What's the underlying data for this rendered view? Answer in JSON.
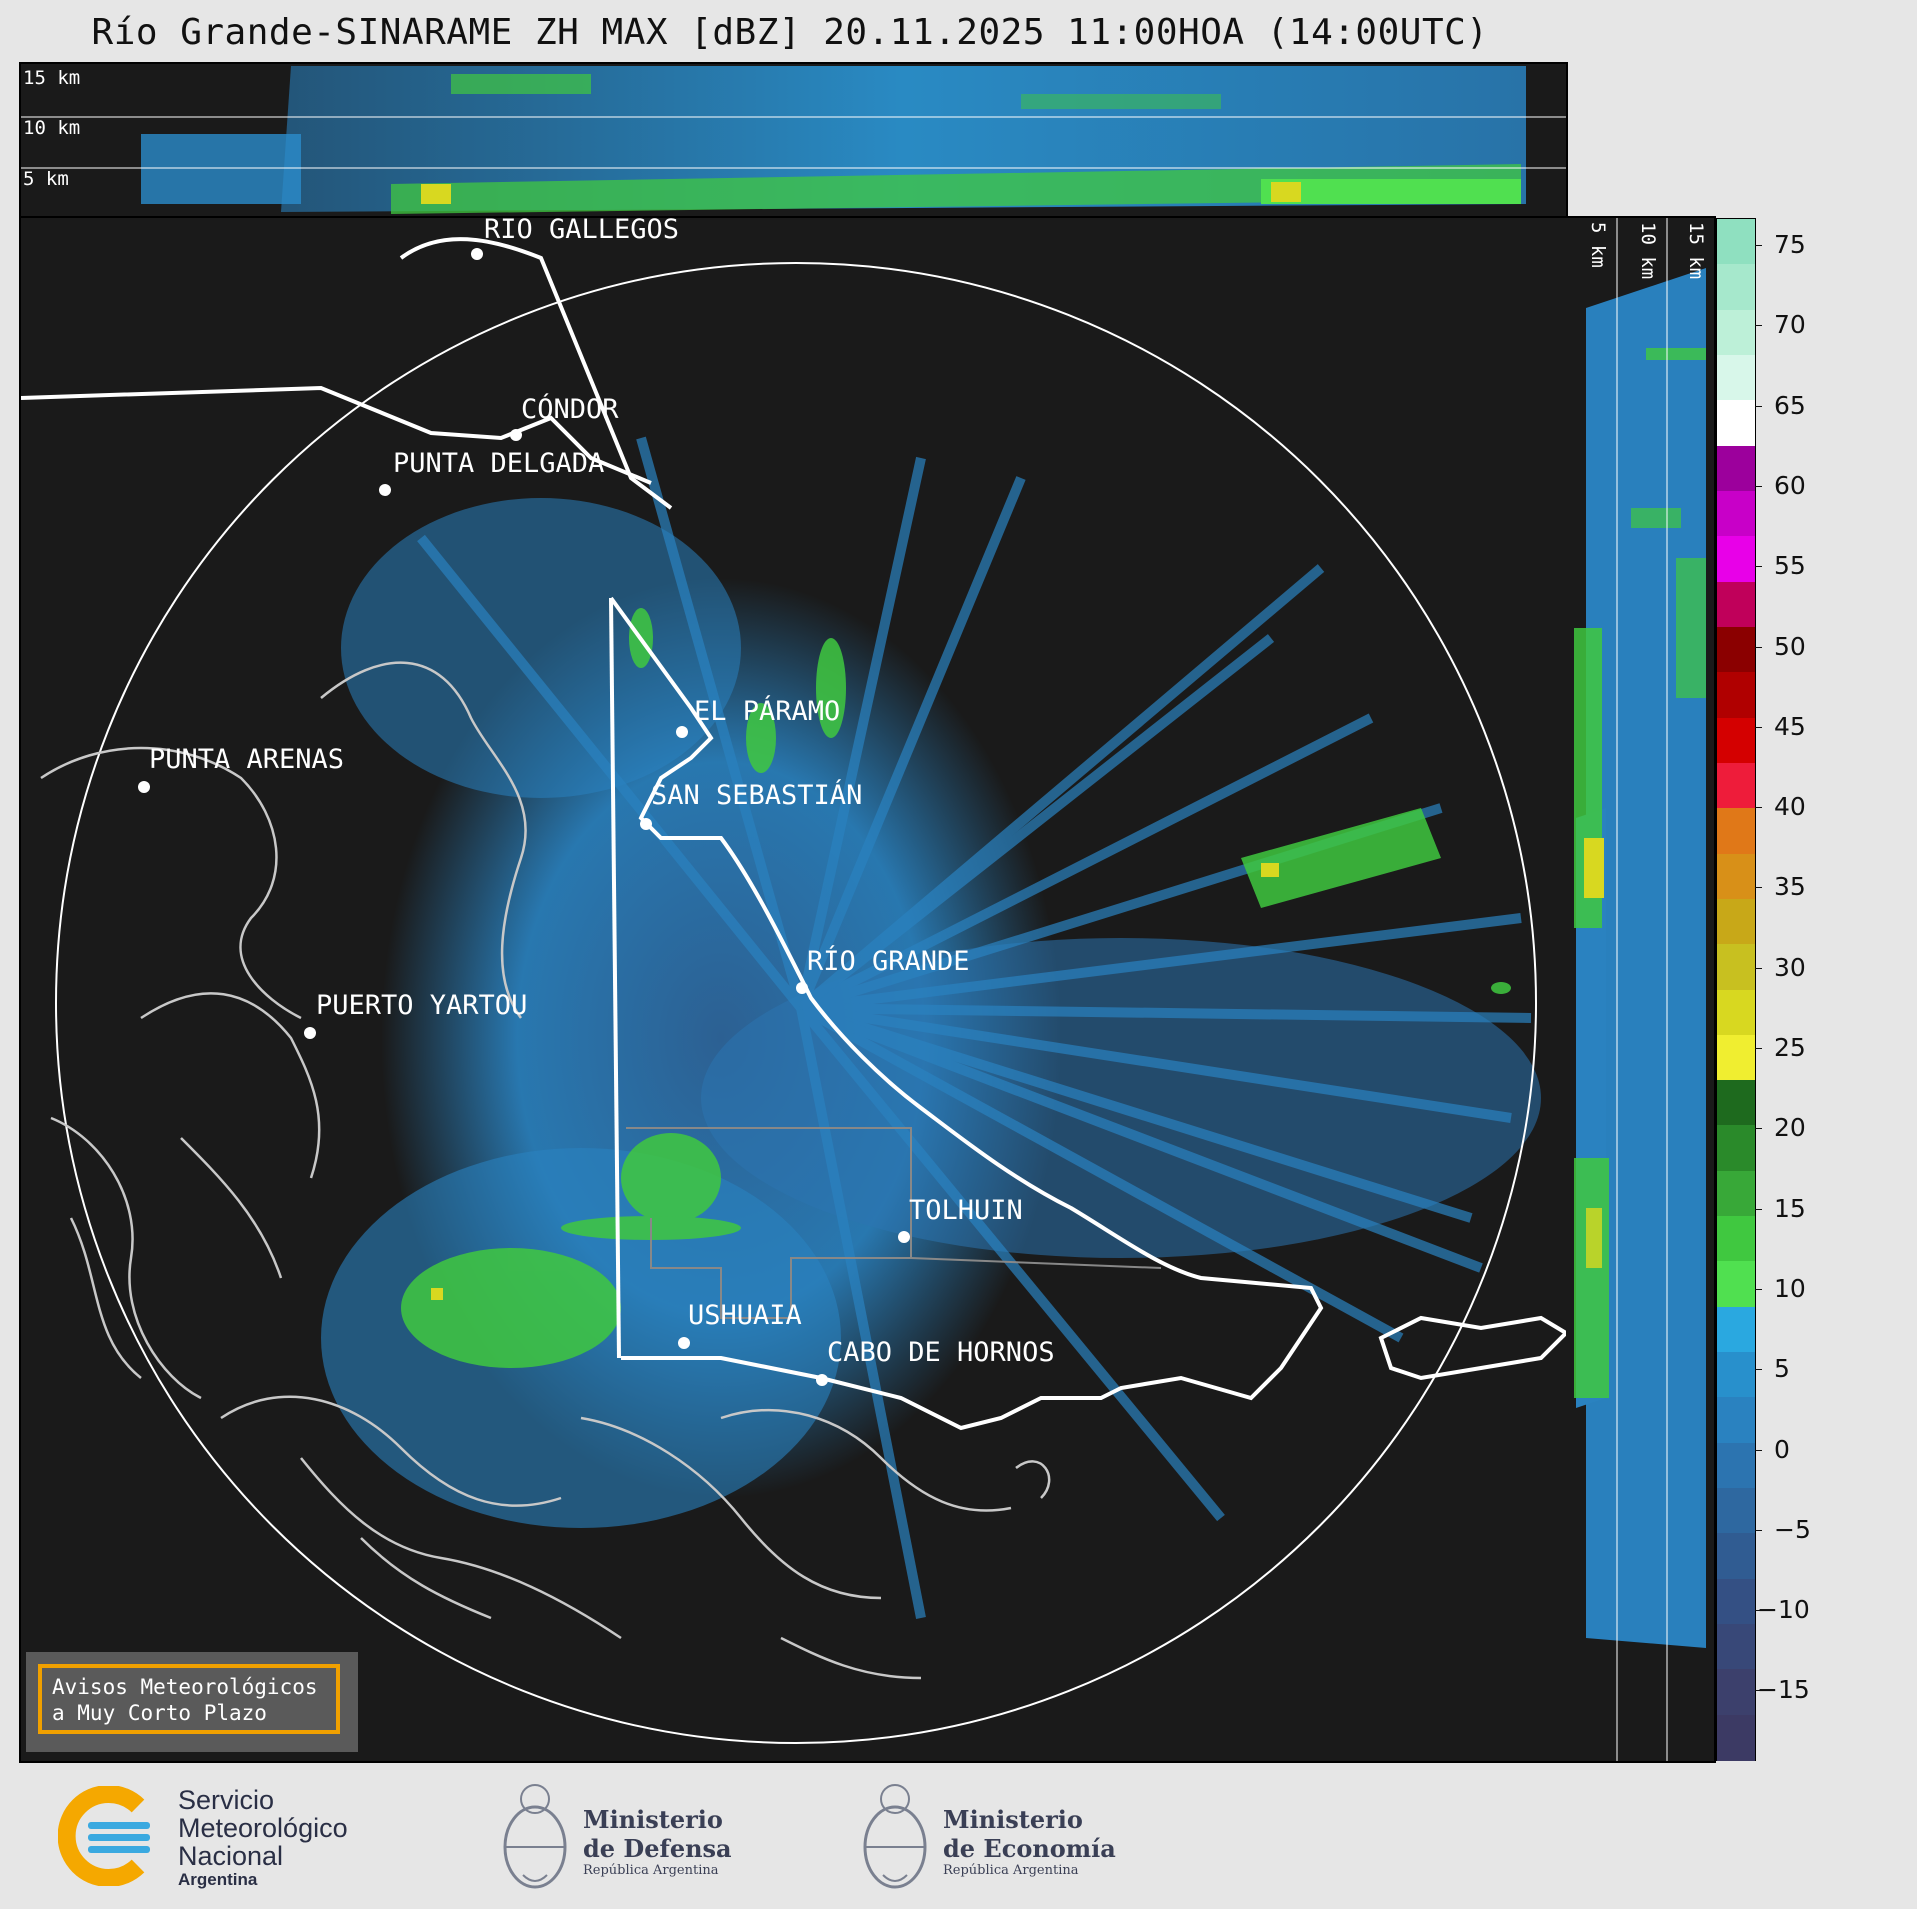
{
  "title": "Río Grande-SINARAME ZH MAX [dBZ] 20.11.2025 11:00HOA (14:00UTC)",
  "top_panel": {
    "height_labels": [
      "15 km",
      "10 km",
      "5 km"
    ]
  },
  "side_panel": {
    "height_labels": [
      "5 km",
      "10 km",
      "15 km"
    ]
  },
  "cities": [
    {
      "name": "RÍO GALLEGOS"
    },
    {
      "name": "CÓNDOR"
    },
    {
      "name": "PUNTA DELGADA"
    },
    {
      "name": "EL PÁRAMO"
    },
    {
      "name": "SAN SEBASTIÁN"
    },
    {
      "name": "PUNTA ARENAS"
    },
    {
      "name": "RÍO GRANDE"
    },
    {
      "name": "PUERTO YARTOU"
    },
    {
      "name": "TOLHUIN"
    },
    {
      "name": "USHUAIA"
    },
    {
      "name": "CABO DE HORNOS"
    }
  ],
  "colorbar": {
    "unit": "dBZ",
    "ticks": [
      "75",
      "70",
      "65",
      "60",
      "55",
      "50",
      "45",
      "40",
      "35",
      "30",
      "25",
      "20",
      "15",
      "10",
      "5",
      "0",
      "−5",
      "−10",
      "−15"
    ],
    "colors": [
      "#8fe0c0",
      "#a6e8cc",
      "#bdf0d8",
      "#d8f7ea",
      "#ffffff",
      "#9c009c",
      "#c800c8",
      "#e800e8",
      "#c0005a",
      "#8b0000",
      "#b00000",
      "#d40000",
      "#ee1c3a",
      "#e07818",
      "#d89018",
      "#c8a818",
      "#c8c020",
      "#d8d820",
      "#f0ee30",
      "#1e6a1e",
      "#2a8a2a",
      "#38a838",
      "#40c840",
      "#50e050",
      "#2aa8e0",
      "#2890cc",
      "#2a82c0",
      "#2c74b0",
      "#2e68a0",
      "#305c92",
      "#345084",
      "#384878",
      "#3c406c",
      "#3c3a64"
    ]
  },
  "warning": {
    "line1": "Avisos Meteorológicos",
    "line2": "a Muy Corto Plazo"
  },
  "logos": {
    "smn": {
      "line1": "Servicio",
      "line2": "Meteorológico",
      "line3": "Nacional",
      "line4": "Argentina"
    },
    "defensa": {
      "line1": "Ministerio",
      "line2": "de Defensa",
      "line3": "República Argentina"
    },
    "economia": {
      "line1": "Ministerio",
      "line2": "de Economía",
      "line3": "República Argentina"
    }
  }
}
